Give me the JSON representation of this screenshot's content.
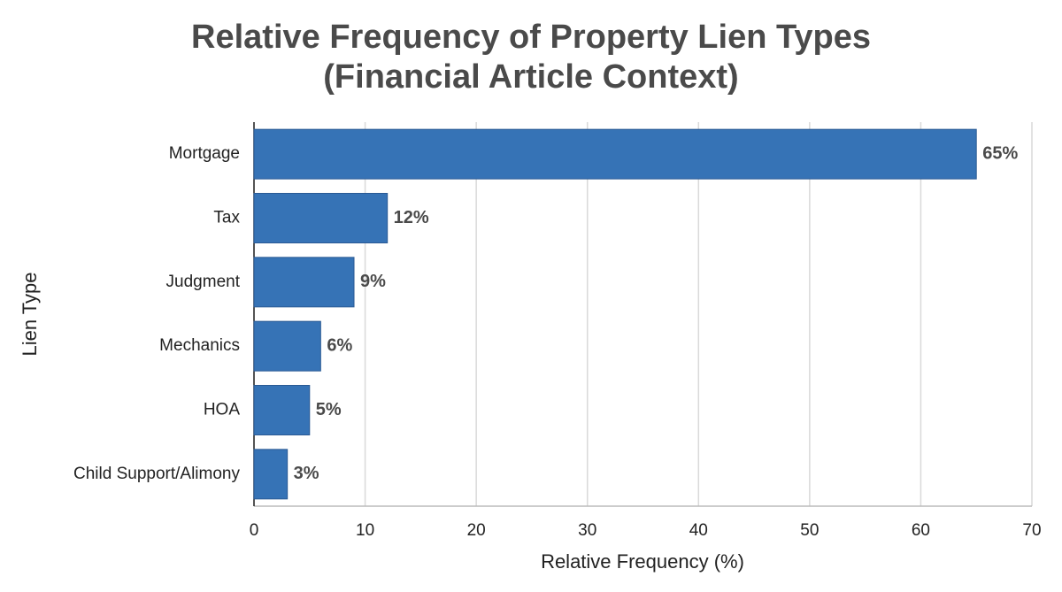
{
  "chart_data": {
    "type": "bar",
    "orientation": "horizontal",
    "title": [
      "Relative Frequency of Property Lien Types",
      "(Financial Article Context)"
    ],
    "x_label": "Relative Frequency (%)",
    "y_label": "Lien Type",
    "categories": [
      "Mortgage",
      "Tax",
      "Judgment",
      "Mechanics",
      "HOA",
      "Child Support/Alimony"
    ],
    "values": [
      65,
      12,
      9,
      6,
      5,
      3
    ],
    "value_labels": [
      "65%",
      "12%",
      "9%",
      "6%",
      "5%",
      "3%"
    ],
    "color": "#3673b6",
    "xlim": [
      0,
      70
    ],
    "xticks": [
      0,
      10,
      20,
      30,
      40,
      50,
      60,
      70
    ],
    "grid": true
  }
}
